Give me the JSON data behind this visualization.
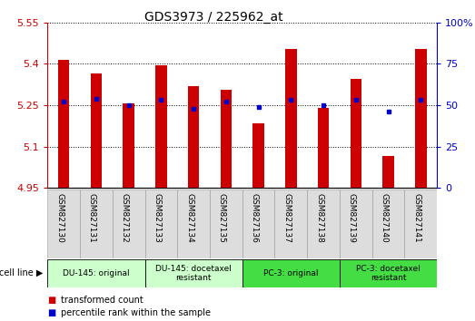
{
  "title": "GDS3973 / 225962_at",
  "samples": [
    "GSM827130",
    "GSM827131",
    "GSM827132",
    "GSM827133",
    "GSM827134",
    "GSM827135",
    "GSM827136",
    "GSM827137",
    "GSM827138",
    "GSM827139",
    "GSM827140",
    "GSM827141"
  ],
  "bar_values": [
    5.415,
    5.365,
    5.255,
    5.395,
    5.32,
    5.305,
    5.185,
    5.455,
    5.24,
    5.345,
    5.065,
    5.455
  ],
  "bar_base": 4.95,
  "percentile_values": [
    52,
    54,
    50,
    53,
    48,
    52,
    49,
    53,
    50,
    53,
    46,
    53
  ],
  "ylim_left": [
    4.95,
    5.55
  ],
  "ylim_right": [
    0,
    100
  ],
  "yticks_left": [
    4.95,
    5.1,
    5.25,
    5.4,
    5.55
  ],
  "yticks_right": [
    0,
    25,
    50,
    75,
    100
  ],
  "ytick_labels_left": [
    "4.95",
    "5.1",
    "5.25",
    "5.4",
    "5.55"
  ],
  "ytick_labels_right": [
    "0",
    "25",
    "50",
    "75",
    "100%"
  ],
  "bar_color": "#cc0000",
  "dot_color": "#0000cc",
  "grid_color": "#000000",
  "cell_line_groups": [
    {
      "label": "DU-145: original",
      "start": 0,
      "end": 3,
      "color": "#ccffcc"
    },
    {
      "label": "DU-145: docetaxel\nresistant",
      "start": 3,
      "end": 6,
      "color": "#ccffcc"
    },
    {
      "label": "PC-3: original",
      "start": 6,
      "end": 9,
      "color": "#44dd44"
    },
    {
      "label": "PC-3: docetaxel\nresistant",
      "start": 9,
      "end": 12,
      "color": "#44dd44"
    }
  ],
  "legend_items": [
    {
      "label": "transformed count",
      "color": "#cc0000"
    },
    {
      "label": "percentile rank within the sample",
      "color": "#0000cc"
    }
  ],
  "cell_line_label": "cell line"
}
